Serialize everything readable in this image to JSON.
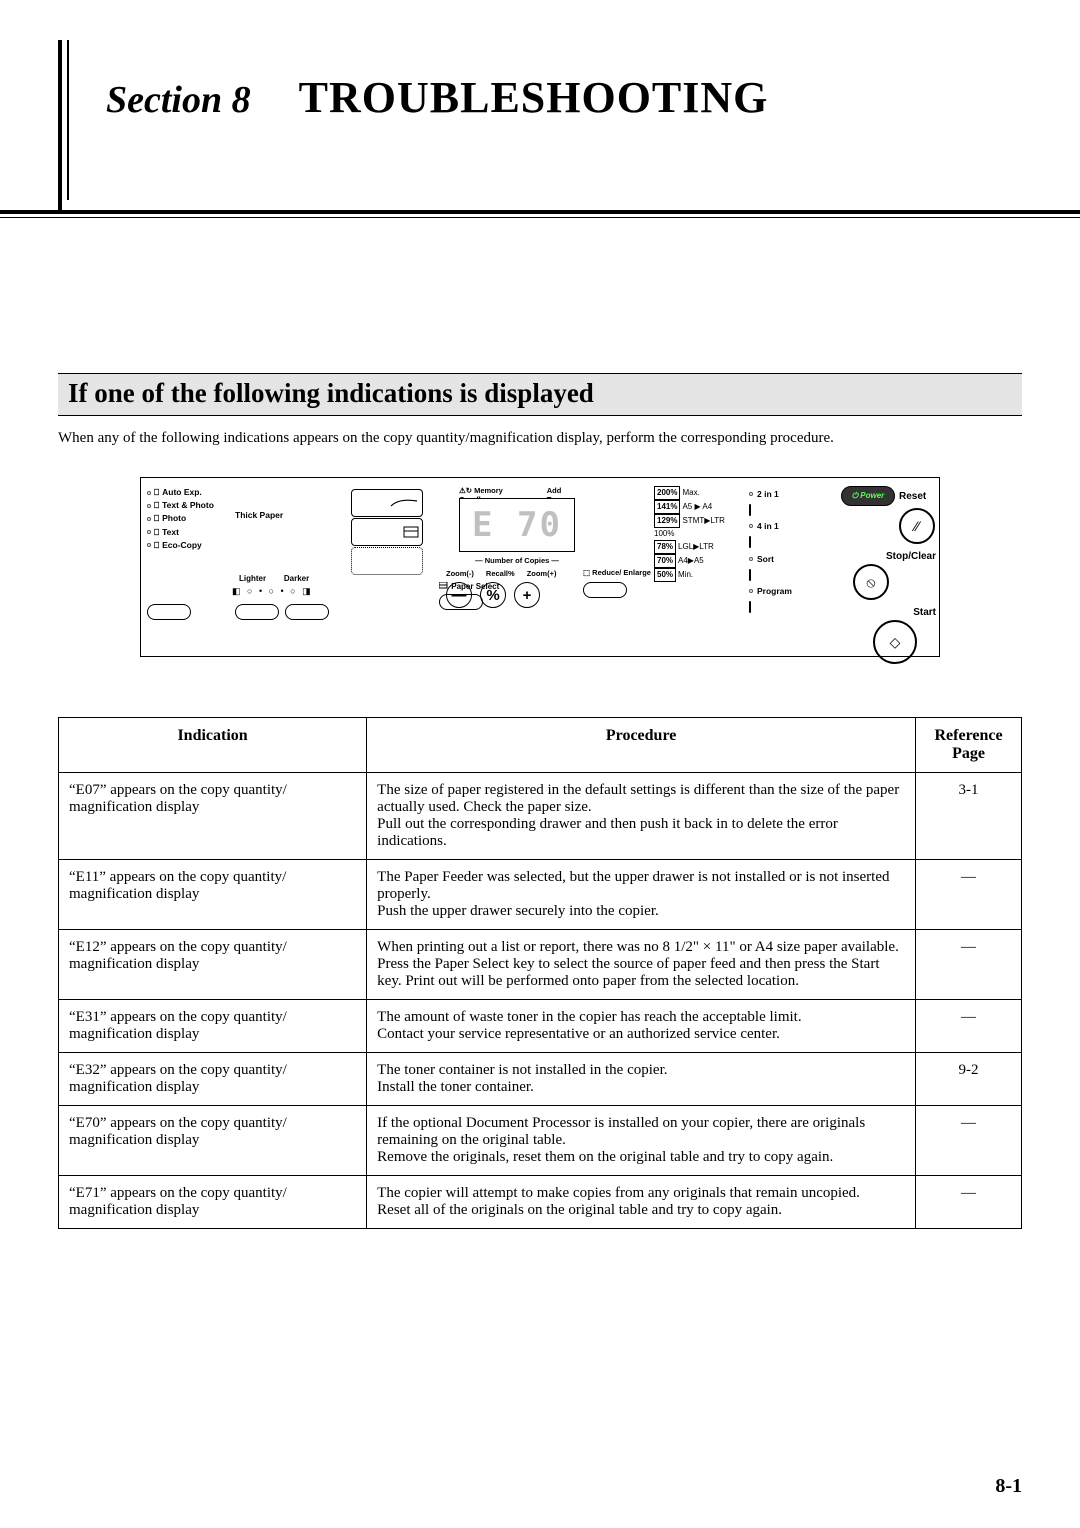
{
  "header": {
    "section_label": "Section 8",
    "section_title": "TROUBLESHOOTING"
  },
  "subhead": "If one of the following indications is displayed",
  "intro": "When any of the following indications appears on the copy quantity/magnification display, perform the corresponding procedure.",
  "panel": {
    "modes": [
      "Auto Exp.",
      "Text & Photo",
      "Photo",
      "Text",
      "Eco-Copy"
    ],
    "thick_paper": "Thick Paper",
    "lighter": "Lighter",
    "darker": "Darker",
    "paper_select": "Paper Select",
    "memory_overflow": "Memory Overflow",
    "add_toner": "Add Toner",
    "number_of_copies": "Number of Copies",
    "seg_sample": "E 70",
    "zoom_minus": "Zoom(-)",
    "recall_pct": "Recall%",
    "zoom_plus": "Zoom(+)",
    "pct_sym": "%",
    "reduce_enlarge": "Reduce/ Enlarge",
    "zoom_levels": [
      {
        "pct": "200%",
        "lbl": "Max."
      },
      {
        "pct": "141%",
        "lbl": "A5 ▶ A4"
      },
      {
        "pct": "129%",
        "lbl": "STMT▶LTR"
      },
      {
        "pct": "",
        "lbl": "100%"
      },
      {
        "pct": "78%",
        "lbl": "LGL▶LTR"
      },
      {
        "pct": "70%",
        "lbl": "A4▶A5"
      },
      {
        "pct": "50%",
        "lbl": "Min."
      }
    ],
    "right_items": [
      "2 in 1",
      "4 in 1",
      "Sort",
      "Program"
    ],
    "power": "Power",
    "reset": "Reset",
    "stop_clear": "Stop/Clear",
    "start": "Start"
  },
  "table": {
    "headers": [
      "Indication",
      "Procedure",
      "Reference Page"
    ],
    "rows": [
      {
        "ind": "“E07” appears on the copy quantity/ magnification display",
        "proc": "The size of paper registered in the default settings is different than the size of the paper actually used. Check the paper size.\nPull out the corresponding drawer and then push it back in to delete the error indications.",
        "ref": "3-1"
      },
      {
        "ind": "“E11” appears on the copy quantity/ magnification display",
        "proc": "The Paper Feeder was selected, but the upper drawer is not installed or is not inserted properly.\nPush the upper drawer securely into the copier.",
        "ref": "—"
      },
      {
        "ind": "“E12” appears on the copy quantity/ magnification display",
        "proc": "When printing out a list or report, there was no 8 1/2\" × 11\" or A4 size paper available.\nPress the Paper Select key to select the source of paper feed and then press the Start key. Print out will be performed onto paper from the selected location.",
        "ref": "—"
      },
      {
        "ind": "“E31” appears on the copy quantity/ magnification display",
        "proc": "The amount of waste toner in the copier has reach the acceptable limit.\nContact your service representative or an authorized service center.",
        "ref": "—"
      },
      {
        "ind": "“E32” appears on the copy quantity/ magnification display",
        "proc": "The toner container is not installed in the copier.\nInstall the toner container.",
        "ref": "9-2"
      },
      {
        "ind": "“E70” appears on the copy quantity/ magnification display",
        "proc": "If the optional Document Processor is installed on your copier, there are originals remaining on the original table.\nRemove the originals, reset them on the original table and try to copy again.",
        "ref": "—"
      },
      {
        "ind": "“E71” appears on the copy quantity/ magnification display",
        "proc": "The copier will attempt to make copies from any originals that remain uncopied.\nReset all of the originals on the original table and try to copy again.",
        "ref": "—"
      }
    ]
  },
  "page_number": "8-1"
}
